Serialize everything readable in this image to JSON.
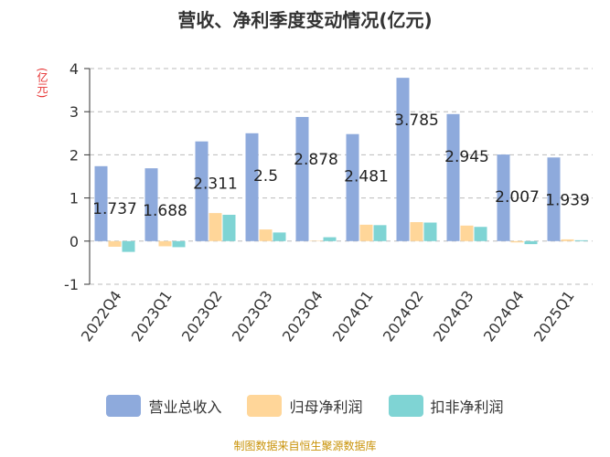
{
  "chart_data": {
    "type": "bar",
    "title": "营收、净利季度变动情况(亿元)",
    "unit_label": "(亿元)",
    "categories": [
      "2022Q4",
      "2023Q1",
      "2023Q2",
      "2023Q3",
      "2023Q4",
      "2024Q1",
      "2024Q2",
      "2024Q3",
      "2024Q4",
      "2025Q1"
    ],
    "series": [
      {
        "name": "营业总收入",
        "color": "#8eaadc",
        "values": [
          1.737,
          1.688,
          2.311,
          2.5,
          2.878,
          2.481,
          3.785,
          2.945,
          2.007,
          1.939
        ],
        "labels": [
          "1.737",
          "1.688",
          "2.311",
          "2.5",
          "2.878",
          "2.481",
          "3.785",
          "2.945",
          "2.007",
          "1.939"
        ]
      },
      {
        "name": "归母净利润",
        "color": "#ffd699",
        "values": [
          -0.13,
          -0.12,
          0.65,
          0.27,
          0.01,
          0.38,
          0.44,
          0.36,
          -0.03,
          0.04
        ]
      },
      {
        "name": "扣非净利润",
        "color": "#7fd4d4",
        "values": [
          -0.25,
          -0.14,
          0.61,
          0.2,
          0.09,
          0.37,
          0.43,
          0.33,
          -0.07,
          0.02
        ]
      }
    ],
    "yticks": [
      4,
      3,
      2,
      1,
      0,
      -1
    ],
    "ylim": [
      -1,
      4
    ],
    "grid": true,
    "legend_position": "bottom"
  },
  "footer": {
    "source": "制图数据来自恒生聚源数据库"
  }
}
